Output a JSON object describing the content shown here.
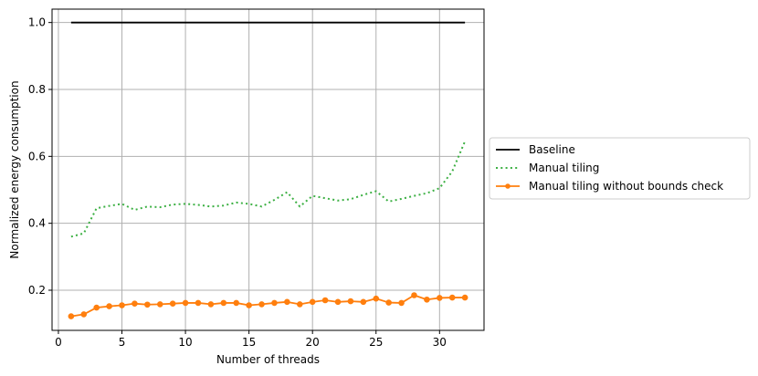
{
  "chart_data": {
    "type": "line",
    "title": "",
    "xlabel": "Number of threads",
    "ylabel": "Normalized energy consumption",
    "xlim": [
      -0.5,
      33.5
    ],
    "ylim": [
      0.08,
      1.04
    ],
    "xticks": [
      0,
      5,
      10,
      15,
      20,
      25,
      30
    ],
    "yticks": [
      0.2,
      0.4,
      0.6,
      0.8,
      1.0
    ],
    "ytick_labels": [
      "0.2",
      "0.4",
      "0.6",
      "0.8",
      "1.0"
    ],
    "grid": true,
    "legend_position": "outside-right",
    "x": [
      1,
      2,
      3,
      4,
      5,
      6,
      7,
      8,
      9,
      10,
      11,
      12,
      13,
      14,
      15,
      16,
      17,
      18,
      19,
      20,
      21,
      22,
      23,
      24,
      25,
      26,
      27,
      28,
      29,
      30,
      31,
      32
    ],
    "series": [
      {
        "name": "Baseline",
        "color": "#000000",
        "style": "solid",
        "marker": "none",
        "values": [
          1.0,
          1.0,
          1.0,
          1.0,
          1.0,
          1.0,
          1.0,
          1.0,
          1.0,
          1.0,
          1.0,
          1.0,
          1.0,
          1.0,
          1.0,
          1.0,
          1.0,
          1.0,
          1.0,
          1.0,
          1.0,
          1.0,
          1.0,
          1.0,
          1.0,
          1.0,
          1.0,
          1.0,
          1.0,
          1.0,
          1.0,
          1.0
        ]
      },
      {
        "name": "Manual tiling",
        "color": "#3cb043",
        "style": "dotted",
        "marker": "none",
        "values": [
          0.36,
          0.37,
          0.445,
          0.452,
          0.458,
          0.44,
          0.45,
          0.448,
          0.456,
          0.458,
          0.455,
          0.45,
          0.453,
          0.462,
          0.458,
          0.45,
          0.47,
          0.493,
          0.45,
          0.482,
          0.475,
          0.468,
          0.472,
          0.485,
          0.496,
          0.465,
          0.473,
          0.482,
          0.49,
          0.505,
          0.555,
          0.645
        ]
      },
      {
        "name": "Manual tiling without bounds check",
        "color": "#ff7f0e",
        "style": "solid",
        "marker": "circle",
        "values": [
          0.122,
          0.128,
          0.148,
          0.152,
          0.155,
          0.16,
          0.157,
          0.158,
          0.16,
          0.162,
          0.162,
          0.158,
          0.162,
          0.162,
          0.155,
          0.158,
          0.162,
          0.165,
          0.158,
          0.165,
          0.17,
          0.165,
          0.167,
          0.165,
          0.175,
          0.163,
          0.162,
          0.185,
          0.172,
          0.177,
          0.178,
          0.178
        ]
      }
    ]
  }
}
